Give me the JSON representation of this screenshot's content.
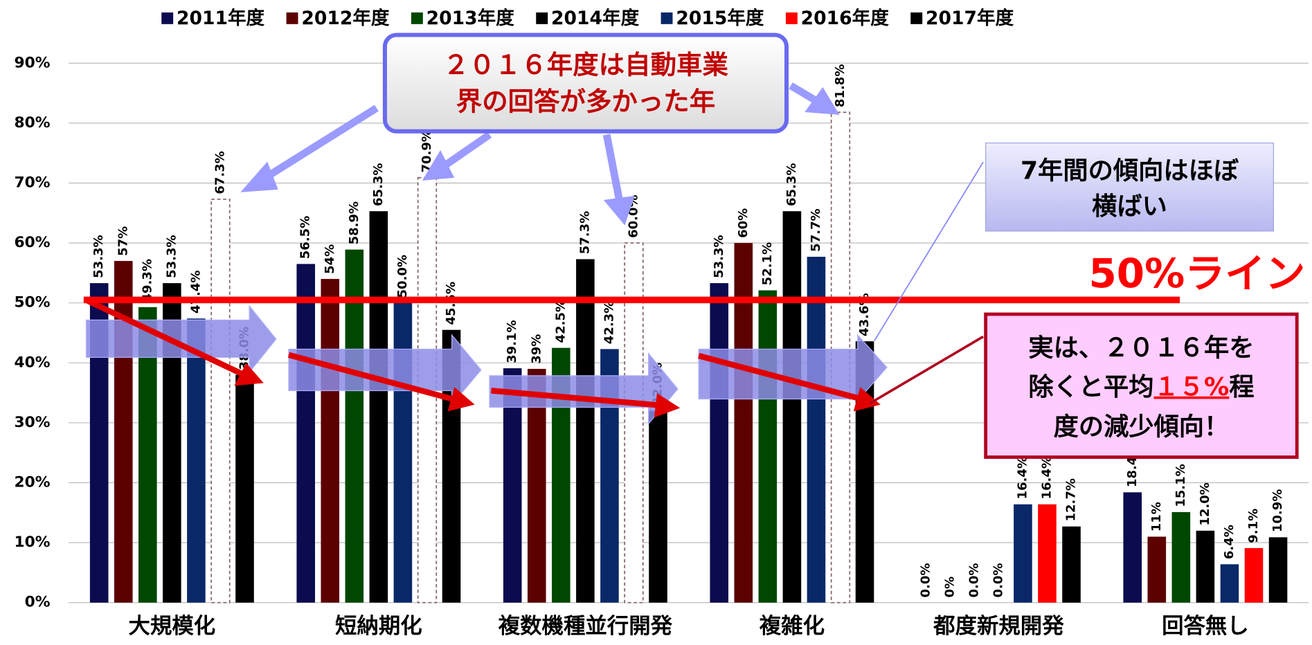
{
  "chart_data": {
    "type": "bar",
    "categories": [
      "大規模化",
      "短納期化",
      "複数機種並行開発",
      "複雑化",
      "都度新規開発",
      "回答無し"
    ],
    "series": [
      {
        "name": "2011年度",
        "color": "#0b0b4f",
        "values": [
          53.3,
          56.5,
          39.1,
          53.3,
          0.0,
          18.4
        ],
        "value_labels": [
          "53.3%",
          "56.5%",
          "39.1%",
          "53.3%",
          "0.0%",
          "18.4%"
        ]
      },
      {
        "name": "2012年度",
        "color": "#5c0000",
        "values": [
          57,
          54,
          39,
          60,
          0,
          11
        ],
        "value_labels": [
          "57%",
          "54%",
          "39%",
          "60%",
          "0%",
          "11%"
        ]
      },
      {
        "name": "2013年度",
        "color": "#004700",
        "values": [
          49.3,
          58.9,
          42.5,
          52.1,
          0.0,
          15.1
        ],
        "value_labels": [
          "49.3%",
          "58.9%",
          "42.5%",
          "52.1%",
          "0.0%",
          "15.1%"
        ]
      },
      {
        "name": "2014年度",
        "color": "#000000",
        "values": [
          53.3,
          65.3,
          57.3,
          65.3,
          0.0,
          12.0
        ],
        "value_labels": [
          "53.3%",
          "65.3%",
          "57.3%",
          "65.3%",
          "0.0%",
          "12.0%"
        ]
      },
      {
        "name": "2015年度",
        "color": "#0a2868",
        "values": [
          47.4,
          50.0,
          42.3,
          57.7,
          16.4,
          6.4
        ],
        "value_labels": [
          "47.4%",
          "50.0%",
          "42.3%",
          "57.7%",
          "16.4%",
          "6.4%"
        ]
      },
      {
        "name": "2016年度",
        "color": "#ff0000",
        "values": [
          67.3,
          70.9,
          60.0,
          81.8,
          16.4,
          9.1
        ],
        "value_labels": [
          "67.3%",
          "70.9%",
          "60.0%",
          "81.8%",
          "16.4%",
          "9.1%"
        ],
        "dashed": [
          true,
          true,
          true,
          true,
          false,
          false
        ]
      },
      {
        "name": "2017年度",
        "color": "#000000",
        "values": [
          38.0,
          45.5,
          32.0,
          43.6,
          12.7,
          10.9
        ],
        "value_labels": [
          "38.0%",
          "45.5%",
          "32.0%",
          "43.6%",
          "12.7%",
          "10.9%"
        ]
      }
    ],
    "ylim": [
      0,
      90
    ],
    "yticks": [
      {
        "value": 0,
        "label": "0%"
      },
      {
        "value": 10,
        "label": "10%"
      },
      {
        "value": 20,
        "label": "20%"
      },
      {
        "value": 30,
        "label": "30%"
      },
      {
        "value": 40,
        "label": "40%"
      },
      {
        "value": 50,
        "label": "50%"
      },
      {
        "value": 60,
        "label": "60%"
      },
      {
        "value": 70,
        "label": "70%"
      },
      {
        "value": 80,
        "label": "80%"
      },
      {
        "value": 90,
        "label": "90%"
      }
    ],
    "grid": true,
    "legend": "top",
    "annotations": {
      "callout_2016": [
        "２０１６年度は自動車業",
        "界の回答が多かった年"
      ],
      "callout_trend": [
        "7年間の傾向はほぼ",
        "横ばい"
      ],
      "line_label": "50%ライン",
      "line_value": 50.5,
      "callout_decrease": [
        "実は、２０１６年を",
        "除くと平均",
        "１５%",
        "程",
        "度の減少傾向！"
      ]
    }
  }
}
